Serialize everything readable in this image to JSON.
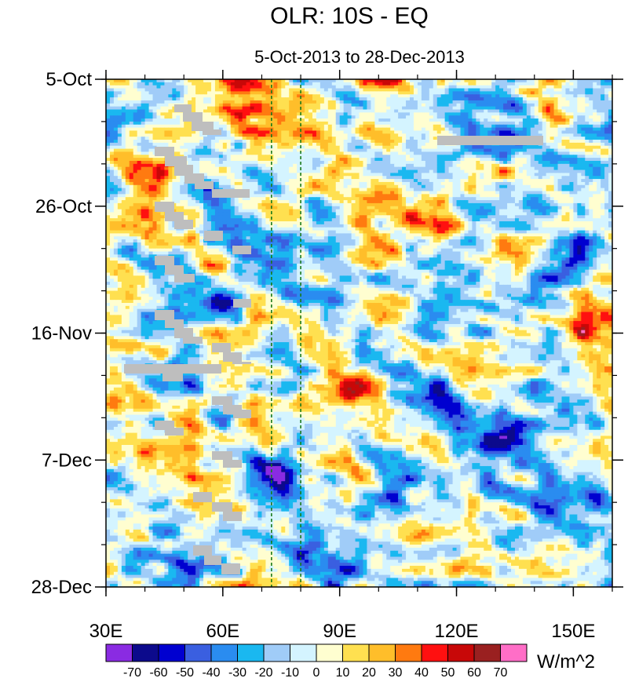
{
  "chart_data": {
    "type": "heatmap",
    "title": "OLR: 10S - EQ",
    "subtitle": "5-Oct-2013 to 28-Dec-2013",
    "units_label": "W/m^2",
    "x_axis": {
      "min": 30,
      "max": 160,
      "ticks": [
        {
          "value": 30,
          "label": "30E"
        },
        {
          "value": 60,
          "label": "60E"
        },
        {
          "value": 90,
          "label": "90E"
        },
        {
          "value": 120,
          "label": "120E"
        },
        {
          "value": 150,
          "label": "150E"
        }
      ],
      "minor_step": 10
    },
    "y_axis": {
      "start": "5-Oct-2013",
      "end": "28-Dec-2013",
      "total_days": 84,
      "ticks": [
        {
          "day": 0,
          "label": "5-Oct"
        },
        {
          "day": 21,
          "label": "26-Oct"
        },
        {
          "day": 42,
          "label": "16-Nov"
        },
        {
          "day": 63,
          "label": "7-Dec"
        },
        {
          "day": 84,
          "label": "28-Dec"
        }
      ],
      "minor_step_days": 7
    },
    "reference_lines": [
      {
        "lon": 72.5,
        "style": "dashed",
        "color": "#1a7a1a"
      },
      {
        "lon": 80,
        "style": "dashed",
        "color": "#1a7a1a"
      }
    ],
    "colorbar": {
      "levels": [
        -70,
        -60,
        -50,
        -40,
        -30,
        -20,
        -10,
        0,
        10,
        20,
        30,
        40,
        50,
        60,
        70
      ],
      "colors": [
        "#8a2be2",
        "#0c0a8c",
        "#0000d0",
        "#3a5fe0",
        "#2a8cf0",
        "#1ab8f0",
        "#a0ccf8",
        "#d4f4ff",
        "#fffed0",
        "#ffe050",
        "#ffbe2a",
        "#ff7a10",
        "#ff1010",
        "#c80808",
        "#9a2020",
        "#ff6ec7"
      ]
    },
    "missing_color": "#bebebe",
    "anomaly_features": [
      {
        "name": "eastward convective band",
        "lon": [
          55,
          160
        ],
        "day_range": [
          14,
          70
        ],
        "value": -45
      },
      {
        "name": "strong convection near 75E",
        "lon": 75,
        "day": 65,
        "value": -72
      },
      {
        "name": "suppressed convection 90-105E",
        "lon": 98,
        "day": 50,
        "value": 50
      },
      {
        "name": "suppressed convection western Pacific",
        "lon": 155,
        "day": 40,
        "value": 45
      }
    ]
  }
}
